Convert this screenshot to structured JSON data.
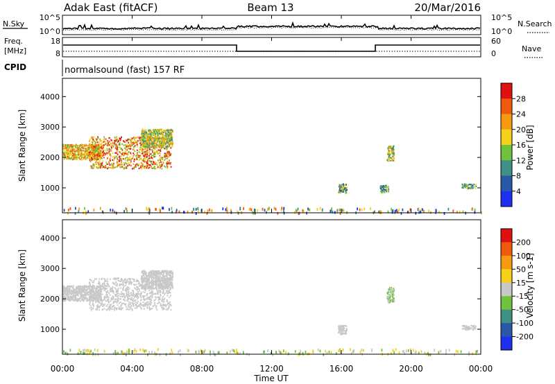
{
  "header": {
    "radar": "Adak East (fitACF)",
    "beam": "Beam 13",
    "date": "20/Mar/2016"
  },
  "noise_panel": {
    "left_label": "N.Sky",
    "right_label": "N.Search",
    "ticks_left": [
      "10^5",
      "10^0"
    ],
    "ticks_right": [
      "10^5",
      "10^0"
    ]
  },
  "freq_panel": {
    "left_label_line1": "Freq.",
    "left_label_line2": "[MHz]",
    "right_label": "Nave",
    "ticks_left": [
      "18",
      "8"
    ],
    "ticks_right": [
      "60",
      "0"
    ]
  },
  "cpid": {
    "label": "CPID",
    "text": "normalsound (fast) 157 RF"
  },
  "x_axis": {
    "label": "Time UT",
    "ticks": [
      "00:00",
      "04:00",
      "08:00",
      "12:00",
      "16:00",
      "20:00",
      "00:00"
    ]
  },
  "chart_data": [
    {
      "type": "heatmap",
      "name": "power",
      "ylabel": "Slant Range [km]",
      "yticks": [
        1000,
        2000,
        3000,
        4000
      ],
      "ylim": [
        180,
        4600
      ],
      "xlim_hours": [
        0,
        24
      ],
      "colorbar": {
        "label": "Power [dB]",
        "ticks": [
          "4",
          "8",
          "12",
          "16",
          "20",
          "24",
          "28"
        ],
        "colors": [
          "#1f2ff0",
          "#2a58a8",
          "#3e8f84",
          "#6fc23c",
          "#f5d11a",
          "#f59a12",
          "#f05a0e",
          "#e01010"
        ]
      },
      "scatter_regions": [
        {
          "t": [
            0.0,
            2.2
          ],
          "r": [
            1950,
            2450
          ],
          "level": [
            3,
            6
          ]
        },
        {
          "t": [
            1.5,
            6.2
          ],
          "r": [
            1650,
            2700
          ],
          "level": [
            3,
            7
          ]
        },
        {
          "t": [
            4.5,
            6.3
          ],
          "r": [
            2350,
            2950
          ],
          "level": [
            2,
            5
          ]
        },
        {
          "t": [
            18.6,
            19.0
          ],
          "r": [
            1900,
            2400
          ],
          "level": [
            2,
            5
          ]
        },
        {
          "t": [
            15.8,
            16.3
          ],
          "r": [
            850,
            1150
          ],
          "level": [
            1,
            4
          ]
        },
        {
          "t": [
            18.2,
            18.7
          ],
          "r": [
            850,
            1100
          ],
          "level": [
            1,
            4
          ]
        },
        {
          "t": [
            22.9,
            23.7
          ],
          "r": [
            1000,
            1150
          ],
          "level": [
            1,
            4
          ]
        },
        {
          "t": [
            0.0,
            24.0
          ],
          "r": [
            200,
            380
          ],
          "level": [
            0,
            6
          ]
        }
      ]
    },
    {
      "type": "heatmap",
      "name": "velocity",
      "ylabel": "Slant Range [km]",
      "yticks": [
        1000,
        2000,
        3000,
        4000
      ],
      "ylim": [
        180,
        4600
      ],
      "xlim_hours": [
        0,
        24
      ],
      "colorbar": {
        "label": "Velocity [m s-1]",
        "ticks": [
          "200",
          "100",
          "50",
          "15",
          "-15",
          "-50",
          "-100",
          "-200"
        ],
        "colors": [
          "#1f2ff0",
          "#2a58a8",
          "#3e8f84",
          "#6fc23c",
          "#c8c8c8",
          "#f5d11a",
          "#f59a12",
          "#f05a0e",
          "#e01010"
        ]
      },
      "scatter_regions": [
        {
          "t": [
            0.0,
            2.2
          ],
          "r": [
            1950,
            2450
          ],
          "level": [
            4,
            4
          ]
        },
        {
          "t": [
            1.5,
            6.2
          ],
          "r": [
            1650,
            2700
          ],
          "level": [
            4,
            4
          ]
        },
        {
          "t": [
            4.5,
            6.3
          ],
          "r": [
            2350,
            2950
          ],
          "level": [
            4,
            4
          ]
        },
        {
          "t": [
            18.6,
            19.0
          ],
          "r": [
            1900,
            2400
          ],
          "level": [
            3,
            4
          ]
        },
        {
          "t": [
            15.8,
            16.3
          ],
          "r": [
            850,
            1150
          ],
          "level": [
            4,
            4
          ]
        },
        {
          "t": [
            22.9,
            23.7
          ],
          "r": [
            1000,
            1150
          ],
          "level": [
            4,
            4
          ]
        },
        {
          "t": [
            0.0,
            24.0
          ],
          "r": [
            200,
            380
          ],
          "level": [
            3,
            5
          ]
        }
      ]
    }
  ]
}
